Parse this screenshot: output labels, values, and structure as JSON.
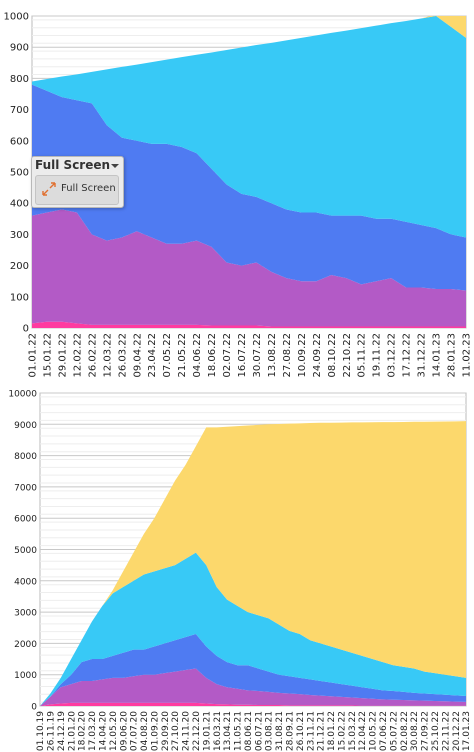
{
  "chart_data": [
    {
      "type": "stacked_area",
      "categories": [
        "01.01.22",
        "15.01.22",
        "29.01.22",
        "12.02.22",
        "26.02.22",
        "12.03.22",
        "26.03.22",
        "09.04.22",
        "23.04.22",
        "07.05.22",
        "21.05.22",
        "04.06.22",
        "18.06.22",
        "02.07.22",
        "16.07.22",
        "30.07.22",
        "13.08.22",
        "27.08.22",
        "10.09.22",
        "24.09.22",
        "08.10.22",
        "22.10.22",
        "05.11.22",
        "19.11.22",
        "03.12.22",
        "17.12.22",
        "31.12.22",
        "14.01.23",
        "28.01.23",
        "11.02.23"
      ],
      "ylim": [
        0,
        1000
      ],
      "yticks": [
        0,
        100,
        200,
        300,
        400,
        500,
        600,
        700,
        800,
        900,
        1000
      ],
      "grid": true,
      "series": [
        {
          "color": "#ff3ba0",
          "values": [
            15,
            20,
            20,
            15,
            10,
            10,
            10,
            10,
            10,
            10,
            10,
            10,
            8,
            8,
            8,
            8,
            5,
            5,
            5,
            5,
            5,
            5,
            5,
            5,
            5,
            5,
            5,
            5,
            5,
            5
          ]
        },
        {
          "color": "#b35ac6",
          "values": [
            345,
            350,
            360,
            355,
            290,
            270,
            280,
            300,
            280,
            260,
            260,
            270,
            252,
            202,
            192,
            202,
            175,
            155,
            145,
            145,
            165,
            155,
            135,
            145,
            155,
            125,
            125,
            120,
            120,
            115
          ]
        },
        {
          "color": "#4f7bf2",
          "values": [
            420,
            390,
            360,
            360,
            420,
            370,
            320,
            290,
            300,
            320,
            310,
            280,
            250,
            250,
            230,
            210,
            220,
            220,
            220,
            220,
            190,
            200,
            220,
            200,
            190,
            210,
            200,
            195,
            175,
            170
          ]
        },
        {
          "color": "#38c9f6",
          "values": [
            10,
            38,
            66,
            83,
            101,
            179,
            227,
            244,
            262,
            270,
            288,
            316,
            373,
            431,
            469,
            487,
            514,
            542,
            560,
            568,
            586,
            593,
            601,
            619,
            627,
            644,
            662,
            680,
            665,
            640
          ]
        },
        {
          "color": "#fcd86c",
          "values": [
            0,
            0,
            0,
            0,
            0,
            0,
            0,
            0,
            0,
            0,
            0,
            0,
            0,
            0,
            0,
            0,
            0,
            0,
            0,
            0,
            0,
            0,
            0,
            0,
            0,
            0,
            0,
            5,
            45,
            75
          ]
        }
      ]
    },
    {
      "type": "stacked_area",
      "categories": [
        "01.10.19",
        "26.11.19",
        "24.12.19",
        "21.01.20",
        "18.02.20",
        "17.03.20",
        "14.04.20",
        "12.05.20",
        "09.06.20",
        "07.07.20",
        "04.08.20",
        "01.09.20",
        "29.09.20",
        "27.10.20",
        "24.11.20",
        "22.12.20",
        "19.01.21",
        "16.03.21",
        "13.04.21",
        "11.05.21",
        "08.06.21",
        "06.07.21",
        "03.08.21",
        "31.08.21",
        "28.09.21",
        "26.10.21",
        "23.11.21",
        "21.12.21",
        "18.01.22",
        "15.02.22",
        "15.03.22",
        "12.04.22",
        "10.05.22",
        "07.06.22",
        "05.07.22",
        "02.08.22",
        "30.08.22",
        "27.09.22",
        "25.10.22",
        "22.11.22",
        "20.12.22",
        "17.01.23"
      ],
      "ylim": [
        0,
        10000
      ],
      "yticks": [
        0,
        1000,
        2000,
        3000,
        4000,
        5000,
        6000,
        7000,
        8000,
        9000,
        10000
      ],
      "grid": true,
      "series": [
        {
          "color": "#ff3ba0",
          "values": [
            0,
            50,
            80,
            100,
            100,
            100,
            100,
            100,
            100,
            100,
            100,
            100,
            100,
            100,
            100,
            100,
            80,
            60,
            50,
            40,
            40,
            30,
            30,
            30,
            20,
            20,
            20,
            20,
            20,
            20,
            20,
            10,
            10,
            10,
            10,
            10,
            10,
            10,
            10,
            10,
            10,
            10
          ]
        },
        {
          "color": "#b35ac6",
          "values": [
            0,
            250,
            520,
            600,
            700,
            700,
            750,
            800,
            800,
            850,
            900,
            900,
            950,
            1000,
            1050,
            1100,
            820,
            640,
            550,
            510,
            460,
            450,
            420,
            390,
            380,
            360,
            330,
            310,
            290,
            270,
            250,
            240,
            220,
            200,
            190,
            180,
            170,
            160,
            150,
            140,
            130,
            120
          ]
        },
        {
          "color": "#4f7bf2",
          "values": [
            0,
            0,
            100,
            300,
            600,
            700,
            650,
            700,
            800,
            850,
            800,
            900,
            950,
            1000,
            1050,
            1100,
            1000,
            900,
            800,
            750,
            800,
            720,
            650,
            580,
            550,
            520,
            500,
            470,
            440,
            410,
            380,
            350,
            320,
            290,
            280,
            260,
            240,
            230,
            220,
            210,
            200,
            190
          ]
        },
        {
          "color": "#38c9f6",
          "values": [
            0,
            100,
            200,
            500,
            700,
            1200,
            1700,
            2000,
            2100,
            2200,
            2400,
            2400,
            2400,
            2400,
            2500,
            2600,
            2600,
            2200,
            2000,
            1900,
            1700,
            1700,
            1700,
            1600,
            1450,
            1400,
            1250,
            1200,
            1150,
            1100,
            1050,
            1000,
            950,
            900,
            820,
            800,
            780,
            700,
            670,
            640,
            610,
            580
          ]
        },
        {
          "color": "#fcd86c",
          "values": [
            0,
            0,
            0,
            0,
            0,
            0,
            0,
            100,
            500,
            900,
            1300,
            1700,
            2200,
            2700,
            3000,
            3400,
            4400,
            5100,
            5520,
            5740,
            5960,
            6080,
            6200,
            6410,
            6620,
            6730,
            6940,
            7050,
            7150,
            7255,
            7360,
            7460,
            7565,
            7670,
            7770,
            7825,
            7880,
            7980,
            8035,
            8090,
            8145,
            8200
          ]
        }
      ]
    }
  ],
  "menu": {
    "title": "Full Screen",
    "item": "Full Screen"
  }
}
